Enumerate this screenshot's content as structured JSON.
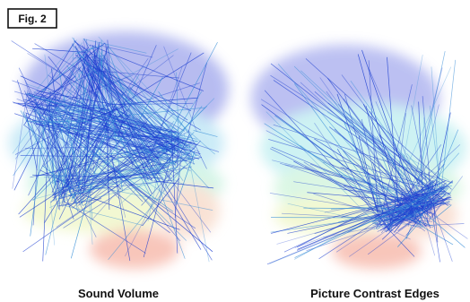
{
  "figure_label": "Fig. 2",
  "panels": [
    {
      "caption": "Sound Volume"
    },
    {
      "caption": "Picture Contrast Edges"
    }
  ]
}
